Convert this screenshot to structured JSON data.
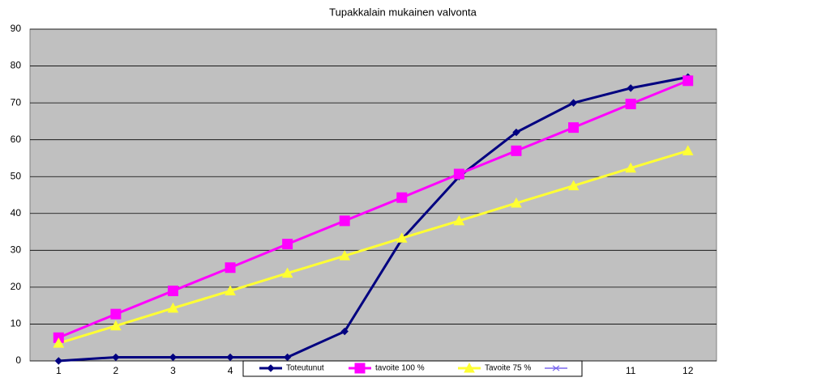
{
  "chart_data": {
    "type": "line",
    "title": "Tupakkalain mukainen valvonta",
    "categories": [
      "1",
      "2",
      "3",
      "4",
      null,
      null,
      null,
      null,
      null,
      null,
      "11",
      "12"
    ],
    "series": [
      {
        "name": "Toteutunut",
        "color": "#000080",
        "marker": "diamond",
        "values": [
          0,
          1,
          1,
          1,
          1,
          8,
          33,
          50,
          62,
          70,
          74,
          77
        ]
      },
      {
        "name": "tavoite 100 %",
        "color": "#ff00ff",
        "marker": "square",
        "values": [
          6.3,
          12.7,
          19,
          25.3,
          31.7,
          38,
          44.3,
          50.7,
          57,
          63.3,
          69.7,
          76
        ]
      },
      {
        "name": "Tavoite 75 %",
        "color": "#ffff33",
        "marker": "triangle",
        "values": [
          4.8,
          9.5,
          14.3,
          19,
          23.8,
          28.5,
          33.3,
          38,
          42.8,
          47.5,
          52.3,
          57
        ]
      }
    ],
    "ylim": [
      0,
      90
    ],
    "yticks": [
      0,
      10,
      20,
      30,
      40,
      50,
      60,
      70,
      80,
      90
    ],
    "grid": true,
    "legend": "bottom"
  }
}
